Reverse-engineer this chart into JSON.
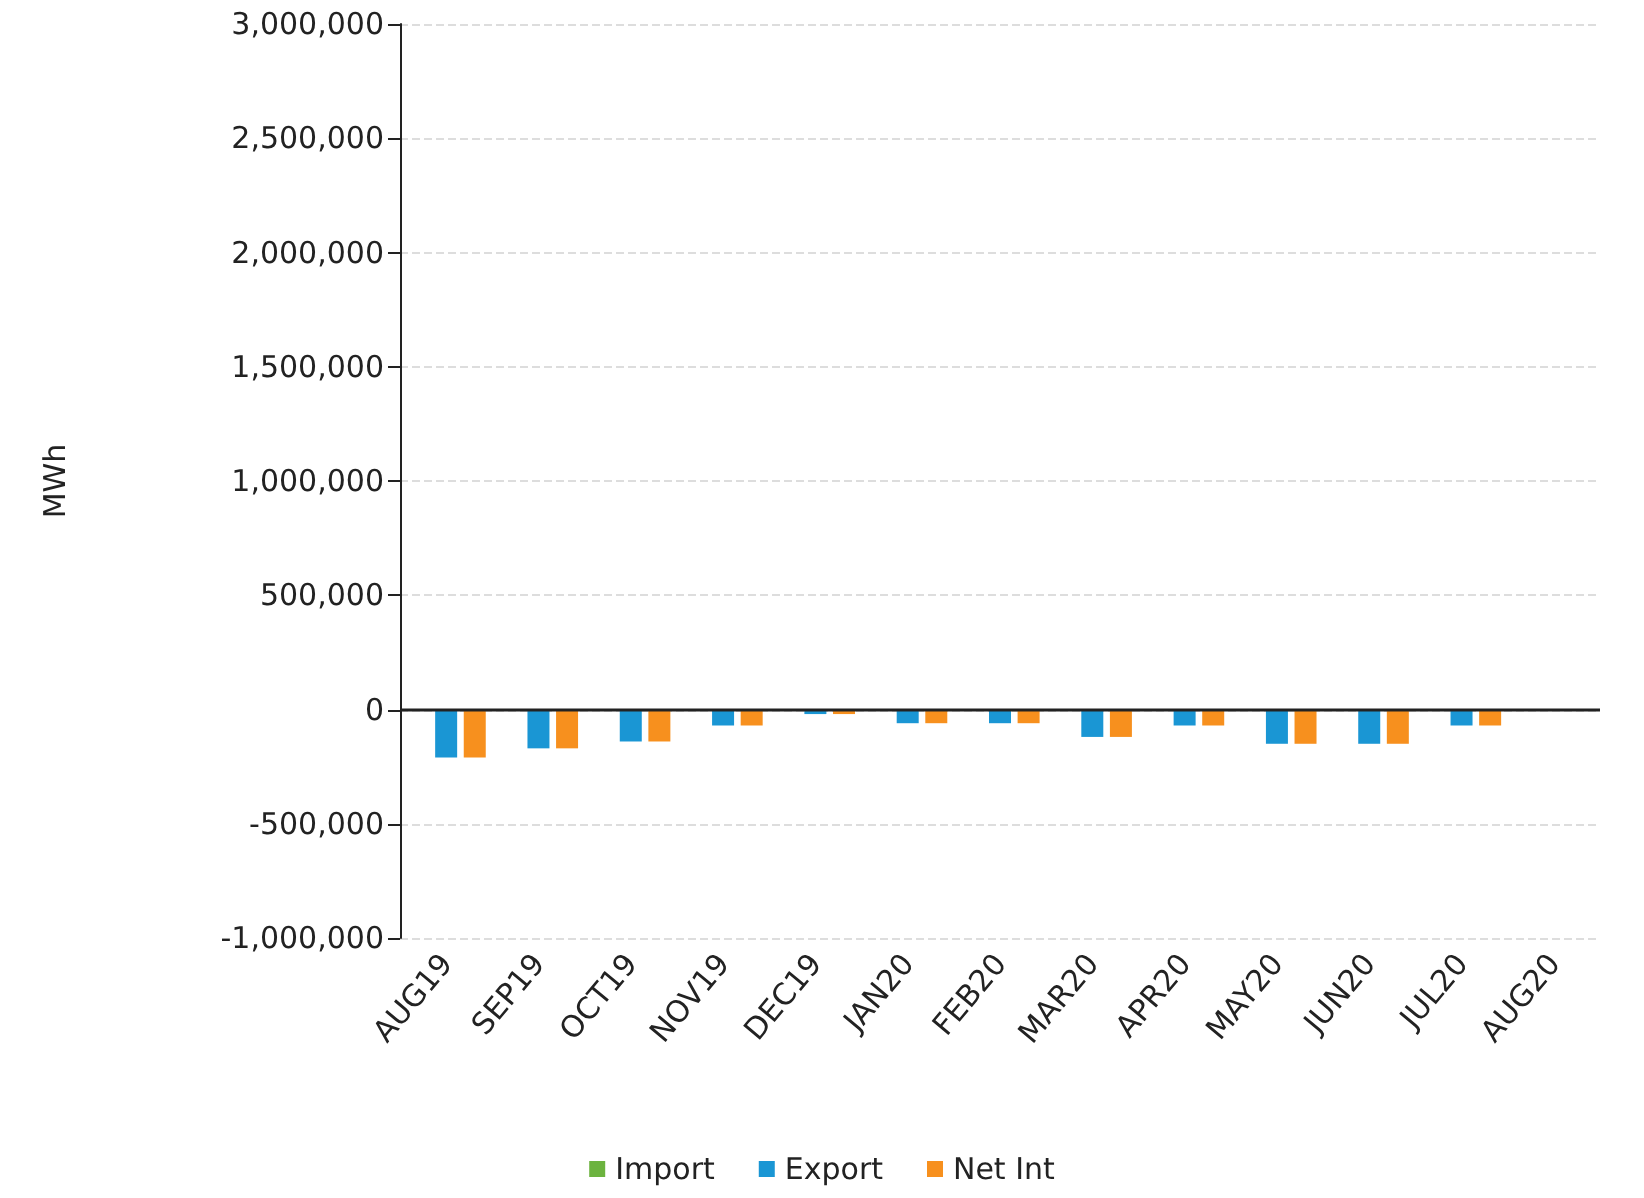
{
  "chart_data": {
    "type": "bar",
    "ylabel": "MWh",
    "categories": [
      "AUG19",
      "SEP19",
      "OCT19",
      "NOV19",
      "DEC19",
      "JAN20",
      "FEB20",
      "MAR20",
      "APR20",
      "MAY20",
      "JUN20",
      "JUL20",
      "AUG20"
    ],
    "series": [
      {
        "name": "Import",
        "color": "#6cb33f",
        "values": [
          0,
          0,
          0,
          0,
          0,
          0,
          0,
          0,
          0,
          0,
          0,
          0,
          null
        ]
      },
      {
        "name": "Export",
        "color": "#1a96d4",
        "values": [
          -210000,
          -170000,
          -140000,
          -70000,
          -20000,
          -60000,
          -60000,
          -120000,
          -70000,
          -150000,
          -150000,
          -70000,
          null
        ]
      },
      {
        "name": "Net Int",
        "color": "#f7901e",
        "values": [
          -210000,
          -170000,
          -140000,
          -70000,
          -20000,
          -60000,
          -60000,
          -120000,
          -70000,
          -150000,
          -150000,
          -70000,
          null
        ]
      }
    ],
    "ylim": [
      -1000000,
      3000000
    ],
    "yticks": [
      {
        "value": -1000000,
        "label": "-1,000,000"
      },
      {
        "value": -500000,
        "label": "-500,000"
      },
      0,
      {
        "value": 500000,
        "label": "500,000"
      },
      {
        "value": 1000000,
        "label": "1,000,000"
      },
      {
        "value": 1500000,
        "label": "1,500,000"
      },
      {
        "value": 2000000,
        "label": "2,000,000"
      },
      {
        "value": 2500000,
        "label": "2,500,000"
      },
      {
        "value": 3000000,
        "label": "3,000,000"
      }
    ],
    "grid": "y",
    "legend": "bottom"
  }
}
